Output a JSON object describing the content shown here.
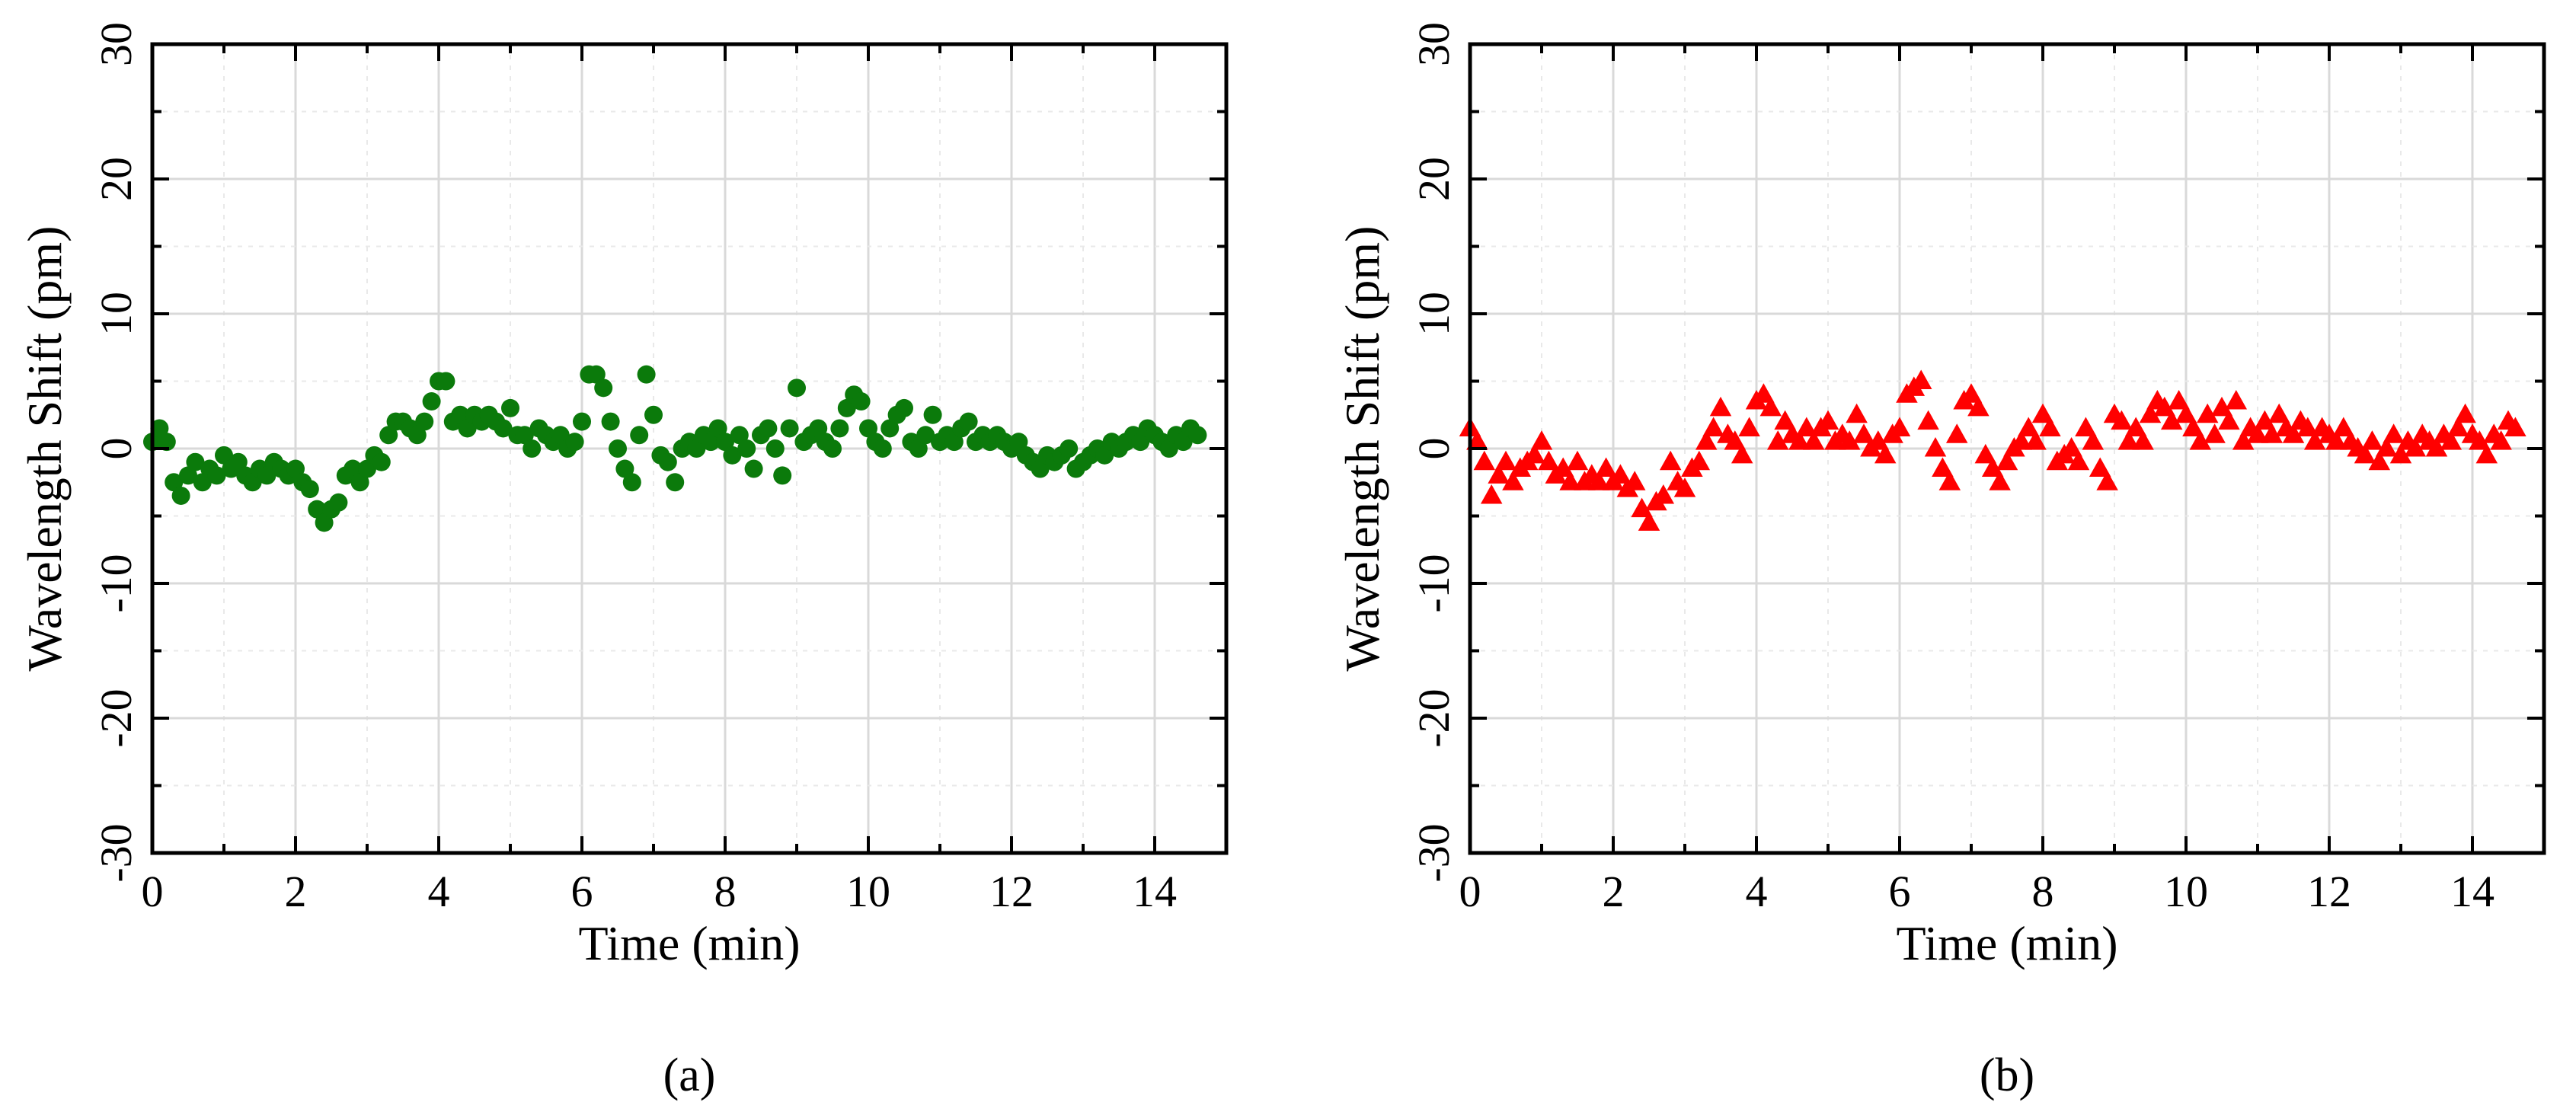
{
  "chart_data": [
    {
      "type": "scatter",
      "panel": "a",
      "caption": "(a)",
      "xlabel": "Time (min)",
      "ylabel": "Wavelength Shift (pm)",
      "xlim": [
        0,
        15
      ],
      "ylim": [
        -30,
        30
      ],
      "xticks": [
        0,
        2,
        4,
        6,
        8,
        10,
        12,
        14
      ],
      "yticks": [
        -30,
        -20,
        -10,
        0,
        10,
        20,
        30
      ],
      "grid": true,
      "marker": "circle",
      "color": "#0b7a0b",
      "series": [
        {
          "name": "Wavelength shift",
          "x": [
            0.0,
            0.1,
            0.2,
            0.3,
            0.4,
            0.5,
            0.6,
            0.7,
            0.8,
            0.9,
            1.0,
            1.1,
            1.2,
            1.3,
            1.4,
            1.5,
            1.6,
            1.7,
            1.8,
            1.9,
            2.0,
            2.1,
            2.2,
            2.3,
            2.4,
            2.5,
            2.6,
            2.7,
            2.8,
            2.9,
            3.0,
            3.1,
            3.2,
            3.3,
            3.4,
            3.5,
            3.6,
            3.7,
            3.8,
            3.9,
            4.0,
            4.1,
            4.2,
            4.3,
            4.4,
            4.5,
            4.6,
            4.7,
            4.8,
            4.9,
            5.0,
            5.1,
            5.2,
            5.3,
            5.4,
            5.5,
            5.6,
            5.7,
            5.8,
            5.9,
            6.0,
            6.1,
            6.2,
            6.3,
            6.4,
            6.5,
            6.6,
            6.7,
            6.8,
            6.9,
            7.0,
            7.1,
            7.2,
            7.3,
            7.4,
            7.5,
            7.6,
            7.7,
            7.8,
            7.9,
            8.0,
            8.1,
            8.2,
            8.3,
            8.4,
            8.5,
            8.6,
            8.7,
            8.8,
            8.9,
            9.0,
            9.1,
            9.2,
            9.3,
            9.4,
            9.5,
            9.6,
            9.7,
            9.8,
            9.9,
            10.0,
            10.1,
            10.2,
            10.3,
            10.4,
            10.5,
            10.6,
            10.7,
            10.8,
            10.9,
            11.0,
            11.1,
            11.2,
            11.3,
            11.4,
            11.5,
            11.6,
            11.7,
            11.8,
            11.9,
            12.0,
            12.1,
            12.2,
            12.3,
            12.4,
            12.5,
            12.6,
            12.7,
            12.8,
            12.9,
            13.0,
            13.1,
            13.2,
            13.3,
            13.4,
            13.5,
            13.6,
            13.7,
            13.8,
            13.9,
            14.0,
            14.1,
            14.2,
            14.3,
            14.4,
            14.5,
            14.6
          ],
          "values": [
            0.5,
            1.5,
            0.5,
            -2.5,
            -3.5,
            -2.0,
            -1.0,
            -2.5,
            -1.5,
            -2.0,
            -0.5,
            -1.5,
            -1.0,
            -2.0,
            -2.5,
            -1.5,
            -2.0,
            -1.0,
            -1.5,
            -2.0,
            -1.5,
            -2.5,
            -3.0,
            -4.5,
            -5.5,
            -4.5,
            -4.0,
            -2.0,
            -1.5,
            -2.5,
            -1.5,
            -0.5,
            -1.0,
            1.0,
            2.0,
            2.0,
            1.5,
            1.0,
            2.0,
            3.5,
            5.0,
            5.0,
            2.0,
            2.5,
            1.5,
            2.5,
            2.0,
            2.5,
            2.0,
            1.5,
            3.0,
            1.0,
            1.0,
            0.0,
            1.5,
            1.0,
            0.5,
            1.0,
            0.0,
            0.5,
            2.0,
            5.5,
            5.5,
            4.5,
            2.0,
            0.0,
            -1.5,
            -2.5,
            1.0,
            5.5,
            2.5,
            -0.5,
            -1.0,
            -2.5,
            0.0,
            0.5,
            0.0,
            1.0,
            0.5,
            1.5,
            0.5,
            -0.5,
            1.0,
            0.0,
            -1.5,
            1.0,
            1.5,
            0.0,
            -2.0,
            1.5,
            4.5,
            0.5,
            1.0,
            1.5,
            0.5,
            0.0,
            1.5,
            3.0,
            4.0,
            3.5,
            1.5,
            0.5,
            0.0,
            1.5,
            2.5,
            3.0,
            0.5,
            0.0,
            1.0,
            2.5,
            0.5,
            1.0,
            0.5,
            1.5,
            2.0,
            0.5,
            1.0,
            0.5,
            1.0,
            0.5,
            0.0,
            0.5,
            -0.5,
            -1.0,
            -1.5,
            -0.5,
            -1.0,
            -0.5,
            0.0,
            -1.5,
            -1.0,
            -0.5,
            0.0,
            -0.5,
            0.5,
            0.0,
            0.5,
            1.0,
            0.5,
            1.5,
            1.0,
            0.5,
            0.0,
            1.0,
            0.5,
            1.5,
            1.0
          ]
        }
      ]
    },
    {
      "type": "scatter",
      "panel": "b",
      "caption": "(b)",
      "xlabel": "Time (min)",
      "ylabel": "Wavelength Shift (pm)",
      "xlim": [
        0,
        15
      ],
      "ylim": [
        -30,
        30
      ],
      "xticks": [
        0,
        2,
        4,
        6,
        8,
        10,
        12,
        14
      ],
      "yticks": [
        -30,
        -20,
        -10,
        0,
        10,
        20,
        30
      ],
      "grid": true,
      "marker": "triangle",
      "color": "#ff0000",
      "series": [
        {
          "name": "Wavelength shift",
          "x": [
            0.0,
            0.1,
            0.2,
            0.3,
            0.4,
            0.5,
            0.6,
            0.7,
            0.8,
            0.9,
            1.0,
            1.1,
            1.2,
            1.3,
            1.4,
            1.5,
            1.6,
            1.7,
            1.8,
            1.9,
            2.0,
            2.1,
            2.2,
            2.3,
            2.4,
            2.5,
            2.6,
            2.7,
            2.8,
            2.9,
            3.0,
            3.1,
            3.2,
            3.3,
            3.4,
            3.5,
            3.6,
            3.7,
            3.8,
            3.9,
            4.0,
            4.1,
            4.2,
            4.3,
            4.4,
            4.5,
            4.6,
            4.7,
            4.8,
            4.9,
            5.0,
            5.1,
            5.2,
            5.3,
            5.4,
            5.5,
            5.6,
            5.7,
            5.8,
            5.9,
            6.0,
            6.1,
            6.2,
            6.3,
            6.4,
            6.5,
            6.6,
            6.7,
            6.8,
            6.9,
            7.0,
            7.1,
            7.2,
            7.3,
            7.4,
            7.5,
            7.6,
            7.7,
            7.8,
            7.9,
            8.0,
            8.1,
            8.2,
            8.3,
            8.4,
            8.5,
            8.6,
            8.7,
            8.8,
            8.9,
            9.0,
            9.1,
            9.2,
            9.3,
            9.4,
            9.5,
            9.6,
            9.7,
            9.8,
            9.9,
            10.0,
            10.1,
            10.2,
            10.3,
            10.4,
            10.5,
            10.6,
            10.7,
            10.8,
            10.9,
            11.0,
            11.1,
            11.2,
            11.3,
            11.4,
            11.5,
            11.6,
            11.7,
            11.8,
            11.9,
            12.0,
            12.1,
            12.2,
            12.3,
            12.4,
            12.5,
            12.6,
            12.7,
            12.8,
            12.9,
            13.0,
            13.1,
            13.2,
            13.3,
            13.4,
            13.5,
            13.6,
            13.7,
            13.8,
            13.9,
            14.0,
            14.1,
            14.2,
            14.3,
            14.4,
            14.5,
            14.6
          ],
          "values": [
            1.5,
            0.5,
            -1.0,
            -3.5,
            -2.0,
            -1.0,
            -2.5,
            -1.5,
            -1.0,
            -0.5,
            0.5,
            -1.0,
            -2.0,
            -1.5,
            -2.5,
            -1.0,
            -2.5,
            -2.0,
            -2.5,
            -1.5,
            -2.5,
            -2.0,
            -3.0,
            -2.5,
            -4.5,
            -5.5,
            -4.0,
            -3.5,
            -1.0,
            -2.5,
            -3.0,
            -1.5,
            -1.0,
            0.5,
            1.5,
            3.0,
            1.0,
            0.5,
            -0.5,
            1.5,
            3.5,
            4.0,
            3.0,
            0.5,
            2.0,
            1.0,
            0.5,
            1.5,
            0.5,
            1.5,
            2.0,
            0.5,
            1.0,
            0.5,
            2.5,
            1.0,
            0.0,
            0.5,
            -0.5,
            1.0,
            1.5,
            4.0,
            4.5,
            5.0,
            2.0,
            0.0,
            -1.5,
            -2.5,
            1.0,
            3.5,
            4.0,
            3.0,
            -0.5,
            -1.5,
            -2.5,
            -1.0,
            0.0,
            0.5,
            1.5,
            0.5,
            2.5,
            1.5,
            -1.0,
            -0.5,
            0.0,
            -1.0,
            1.5,
            0.5,
            -1.5,
            -2.5,
            2.5,
            2.0,
            0.5,
            1.5,
            0.5,
            2.5,
            3.5,
            3.0,
            2.0,
            3.5,
            2.5,
            1.5,
            0.5,
            2.5,
            1.0,
            3.0,
            2.0,
            3.5,
            0.5,
            1.5,
            1.0,
            2.0,
            1.0,
            2.5,
            1.5,
            1.0,
            2.0,
            1.5,
            0.5,
            1.5,
            1.0,
            0.5,
            1.5,
            0.5,
            0.0,
            -0.5,
            0.5,
            -1.0,
            0.0,
            1.0,
            -0.5,
            0.5,
            0.0,
            1.0,
            0.5,
            0.0,
            1.0,
            0.5,
            1.5,
            2.5,
            1.0,
            0.5,
            -0.5,
            1.0,
            0.5,
            2.0,
            1.5
          ]
        }
      ]
    }
  ]
}
